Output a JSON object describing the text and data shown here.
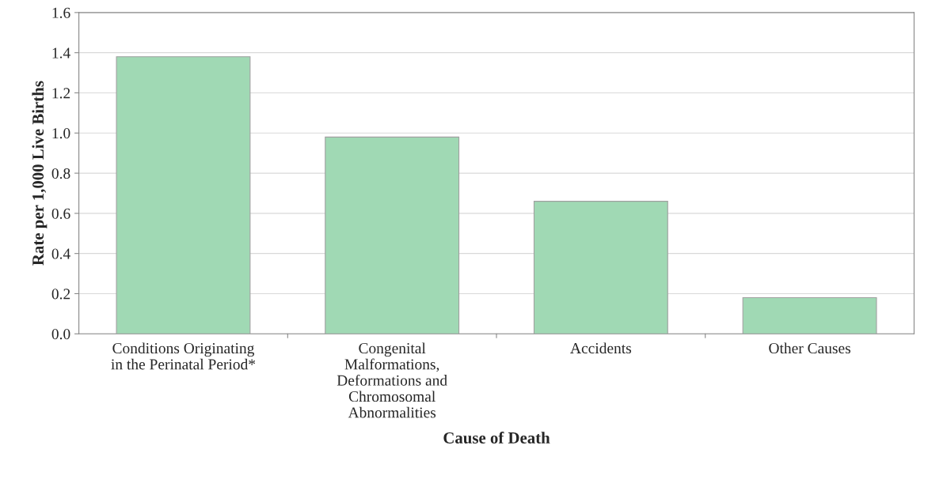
{
  "chart_data": {
    "type": "bar",
    "xlabel": "Cause of Death",
    "ylabel": "Rate per 1,000 Live Births",
    "categories": [
      "Conditions Originating\nin the Perinatal Period*",
      "Congenital\nMalformations,\nDeformations and\nChromosomal\nAbnormalities",
      "Accidents",
      "Other Causes"
    ],
    "values": [
      1.38,
      0.98,
      0.66,
      0.18
    ],
    "color": "#a0d9b4",
    "ylim": [
      0,
      1.6
    ],
    "yticks": [
      {
        "value": 0,
        "label": "0.0"
      },
      {
        "value": 0.2,
        "label": "0.2"
      },
      {
        "value": 0.4,
        "label": "0.4"
      },
      {
        "value": 0.6,
        "label": "0.6"
      },
      {
        "value": 0.8,
        "label": "0.8"
      },
      {
        "value": 1.0,
        "label": "1.0"
      },
      {
        "value": 1.2,
        "label": "1.2"
      },
      {
        "value": 1.4,
        "label": "1.4"
      },
      {
        "value": 1.6,
        "label": "1.6"
      }
    ],
    "grid": "y",
    "legend": false
  }
}
